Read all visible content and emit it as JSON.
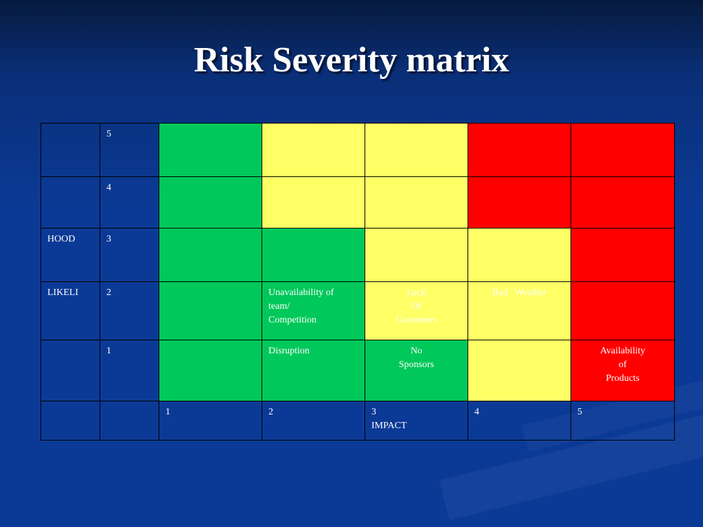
{
  "title": "Risk Severity matrix",
  "colors": {
    "green": "#00c85a",
    "yellow": "#ffff66",
    "red": "#ff0000",
    "background": "#0b3a96"
  },
  "axis": {
    "likelihood_label_part1": "HOOD",
    "likelihood_label_part2": "LIKELI",
    "impact_label": "IMPACT"
  },
  "rows": [
    {
      "likelihood": "5",
      "side_label": "",
      "cells": [
        {
          "color": "green",
          "text": []
        },
        {
          "color": "yellow",
          "text": []
        },
        {
          "color": "yellow",
          "text": []
        },
        {
          "color": "red",
          "text": []
        },
        {
          "color": "red",
          "text": []
        }
      ]
    },
    {
      "likelihood": "4",
      "side_label": "",
      "cells": [
        {
          "color": "green",
          "text": []
        },
        {
          "color": "yellow",
          "text": []
        },
        {
          "color": "yellow",
          "text": []
        },
        {
          "color": "red",
          "text": []
        },
        {
          "color": "red",
          "text": []
        }
      ]
    },
    {
      "likelihood": "3",
      "side_label": "HOOD",
      "cells": [
        {
          "color": "green",
          "text": []
        },
        {
          "color": "green",
          "text": []
        },
        {
          "color": "yellow",
          "text": []
        },
        {
          "color": "yellow",
          "text": []
        },
        {
          "color": "red",
          "text": []
        }
      ]
    },
    {
      "likelihood": "2",
      "side_label": "LIKELI",
      "cells": [
        {
          "color": "green",
          "text": []
        },
        {
          "color": "green",
          "text": [
            "Unavailability of",
            "team/",
            "Competition"
          ]
        },
        {
          "color": "yellow",
          "text": [
            "Lack",
            "Of",
            "Customers"
          ]
        },
        {
          "color": "yellow",
          "text": [
            "Bad   Weather"
          ]
        },
        {
          "color": "red",
          "text": []
        }
      ]
    },
    {
      "likelihood": "1",
      "side_label": "",
      "cells": [
        {
          "color": "green",
          "text": []
        },
        {
          "color": "green",
          "text": [
            "Disruption"
          ]
        },
        {
          "color": "green",
          "text": [
            "No",
            "Sponsors"
          ]
        },
        {
          "color": "yellow",
          "text": []
        },
        {
          "color": "red",
          "text": [
            "Availability",
            "of",
            "Products"
          ]
        }
      ]
    }
  ],
  "impact_row": [
    "1",
    "2",
    "3",
    "4",
    "5"
  ],
  "impact_caption": "IMPACT"
}
